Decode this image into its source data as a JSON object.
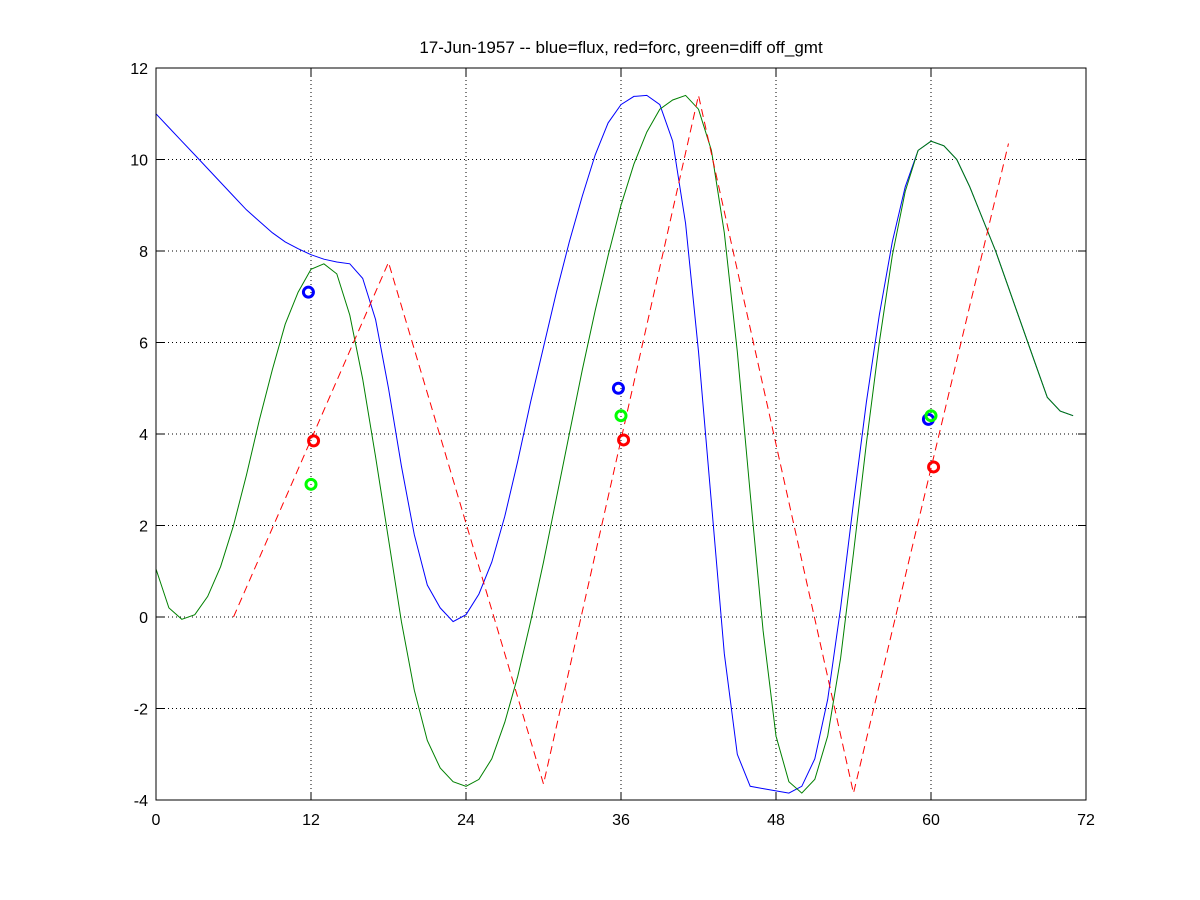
{
  "chart_data": {
    "type": "line",
    "title": "17-Jun-1957 -- blue=flux, red=forc, green=diff off_gmt",
    "xlabel": "",
    "ylabel": "",
    "xlim": [
      0,
      72
    ],
    "ylim": [
      -4,
      12
    ],
    "xticks": [
      0,
      12,
      24,
      36,
      48,
      60,
      72
    ],
    "yticks": [
      -4,
      -2,
      0,
      2,
      4,
      6,
      8,
      10,
      12
    ],
    "grid": true,
    "series": [
      {
        "color": "#0000ff",
        "style": "solid",
        "x": [
          0,
          1,
          2,
          3,
          4,
          5,
          6,
          7,
          8,
          9,
          10,
          11,
          12,
          13,
          14,
          15,
          16,
          17,
          18,
          19,
          20,
          21,
          22,
          23,
          24,
          25,
          26,
          27,
          28,
          29,
          30,
          31,
          32,
          33,
          34,
          35,
          36,
          37,
          38,
          39,
          40,
          41,
          42,
          43,
          44,
          45,
          46,
          47,
          48,
          49,
          50,
          51,
          52,
          53,
          54,
          55,
          56,
          57,
          58,
          59,
          60,
          61,
          62,
          63,
          64,
          65,
          66,
          67,
          68,
          69,
          70,
          71
        ],
        "y": [
          11.0,
          10.7,
          10.4,
          10.1,
          9.8,
          9.5,
          9.2,
          8.9,
          8.65,
          8.4,
          8.2,
          8.05,
          7.92,
          7.82,
          7.76,
          7.72,
          7.4,
          6.5,
          5.0,
          3.3,
          1.8,
          0.7,
          0.2,
          -0.1,
          0.05,
          0.5,
          1.2,
          2.2,
          3.4,
          4.7,
          5.9,
          7.1,
          8.2,
          9.2,
          10.1,
          10.8,
          11.2,
          11.38,
          11.4,
          11.2,
          10.4,
          8.6,
          5.8,
          2.5,
          -0.8,
          -3.0,
          -3.7,
          -3.75,
          -3.8,
          -3.85,
          -3.7,
          -3.1,
          -1.8,
          0.2,
          2.5,
          4.7,
          6.6,
          8.2,
          9.4,
          10.2,
          10.4,
          10.3,
          10.0,
          9.4,
          8.7,
          8.0,
          7.2,
          6.4,
          5.6,
          4.8,
          4.5,
          4.4
        ]
      },
      {
        "color": "#008000",
        "style": "solid",
        "x": [
          0,
          1,
          2,
          3,
          4,
          5,
          6,
          7,
          8,
          9,
          10,
          11,
          12,
          13,
          14,
          15,
          16,
          17,
          18,
          19,
          20,
          21,
          22,
          23,
          24,
          25,
          26,
          27,
          28,
          29,
          30,
          31,
          32,
          33,
          34,
          35,
          36,
          37,
          38,
          39,
          40,
          41,
          42,
          43,
          44,
          45,
          46,
          47,
          48,
          49,
          50,
          51,
          52,
          53,
          54,
          55,
          56,
          57,
          58,
          59,
          60,
          61,
          62,
          63,
          64,
          65,
          66,
          67,
          68,
          69,
          70,
          71
        ],
        "y": [
          1.05,
          0.2,
          -0.05,
          0.05,
          0.45,
          1.1,
          2.0,
          3.1,
          4.3,
          5.4,
          6.4,
          7.1,
          7.6,
          7.72,
          7.5,
          6.6,
          5.2,
          3.5,
          1.7,
          -0.1,
          -1.6,
          -2.7,
          -3.3,
          -3.6,
          -3.7,
          -3.55,
          -3.1,
          -2.3,
          -1.3,
          -0.1,
          1.2,
          2.6,
          4.0,
          5.4,
          6.7,
          7.9,
          9.0,
          9.9,
          10.6,
          11.1,
          11.3,
          11.4,
          11.1,
          10.2,
          8.4,
          5.8,
          2.7,
          -0.3,
          -2.6,
          -3.6,
          -3.85,
          -3.55,
          -2.6,
          -0.9,
          1.4,
          3.8,
          6.0,
          7.9,
          9.3,
          10.2,
          10.4,
          10.3,
          10.0,
          9.4,
          8.7,
          8.0,
          7.2,
          6.4,
          5.6,
          4.8,
          4.5,
          4.4
        ]
      },
      {
        "color": "#ff0000",
        "style": "dashed",
        "x": [
          6,
          18,
          30,
          42,
          54,
          66
        ],
        "y": [
          0,
          7.75,
          -3.65,
          11.4,
          -3.85,
          10.35
        ]
      }
    ],
    "markers": [
      {
        "color": "#0000ff",
        "x": 11.8,
        "y": 7.1
      },
      {
        "color": "#ff0000",
        "x": 12.2,
        "y": 3.85
      },
      {
        "color": "#00ff00",
        "x": 12.0,
        "y": 2.9
      },
      {
        "color": "#0000ff",
        "x": 35.8,
        "y": 5.0
      },
      {
        "color": "#00ff00",
        "x": 36.0,
        "y": 4.4
      },
      {
        "color": "#ff0000",
        "x": 36.2,
        "y": 3.87
      },
      {
        "color": "#0000ff",
        "x": 59.8,
        "y": 4.32
      },
      {
        "color": "#00ff00",
        "x": 60.0,
        "y": 4.4
      },
      {
        "color": "#ff0000",
        "x": 60.2,
        "y": 3.28
      }
    ]
  }
}
